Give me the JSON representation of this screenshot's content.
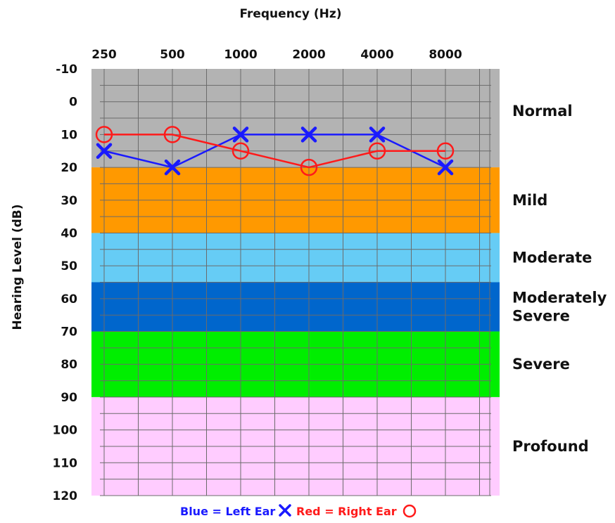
{
  "chart_data": {
    "type": "line",
    "xlabel": "Frequency (Hz)",
    "ylabel": "Hearing Level (dB)",
    "x": [
      "250",
      "500",
      "1000",
      "2000",
      "4000",
      "8000"
    ],
    "y_ticks": [
      -10,
      0,
      10,
      20,
      30,
      40,
      50,
      60,
      70,
      80,
      90,
      100,
      110,
      120
    ],
    "ylim": [
      -10,
      120
    ],
    "y_inverted": true,
    "grid": true,
    "bands": [
      {
        "label": "Normal",
        "from": -10,
        "to": 20,
        "color": "#b3b3b3",
        "label_lines": [
          "Normal"
        ]
      },
      {
        "label": "Mild",
        "from": 20,
        "to": 40,
        "color": "#ff9900",
        "label_lines": [
          "Mild"
        ]
      },
      {
        "label": "Moderate",
        "from": 40,
        "to": 55,
        "color": "#66ccf5",
        "label_lines": [
          "Moderate"
        ]
      },
      {
        "label": "Moderately Severe",
        "from": 55,
        "to": 70,
        "color": "#0066cc",
        "label_lines": [
          "Moderately",
          "Severe"
        ]
      },
      {
        "label": "Severe",
        "from": 70,
        "to": 90,
        "color": "#00ee00",
        "label_lines": [
          "Severe"
        ]
      },
      {
        "label": "Profound",
        "from": 90,
        "to": 120,
        "color": "#ffccff",
        "label_lines": [
          "Profound"
        ]
      }
    ],
    "series": [
      {
        "name": "Left Ear",
        "marker": "x",
        "color": "#1a1aff",
        "values": [
          15,
          20,
          10,
          10,
          10,
          20
        ]
      },
      {
        "name": "Right Ear",
        "marker": "o",
        "color": "#ff1a1a",
        "values": [
          10,
          10,
          15,
          20,
          15,
          15
        ]
      }
    ],
    "legend": {
      "position": "bottom",
      "blue_text": "Blue = Left Ear",
      "red_text": "Red = Right Ear"
    }
  }
}
